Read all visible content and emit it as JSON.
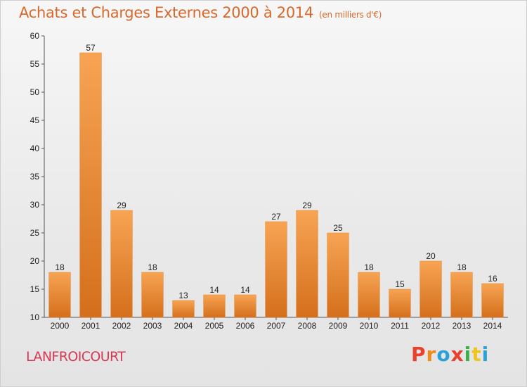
{
  "header": {
    "title": "Achats et Charges Externes 2000 à 2014",
    "unit": "(en milliers d'€)"
  },
  "footer": {
    "commune": "LANFROICOURT",
    "brand": "Proxiti",
    "brand_colors": [
      "#e8412c",
      "#f08a1c",
      "#2aa2d8",
      "#e8412c",
      "#3db04a",
      "#f0c419",
      "#2aa2d8"
    ]
  },
  "chart_data": {
    "type": "bar",
    "categories": [
      "2000",
      "2001",
      "2002",
      "2003",
      "2004",
      "2005",
      "2006",
      "2007",
      "2008",
      "2009",
      "2010",
      "2011",
      "2012",
      "2013",
      "2014"
    ],
    "values": [
      18,
      57,
      29,
      18,
      13,
      14,
      14,
      27,
      29,
      25,
      18,
      15,
      20,
      18,
      16
    ],
    "ylim": [
      10,
      60
    ],
    "yticks": [
      10,
      15,
      20,
      25,
      30,
      35,
      40,
      45,
      50,
      55,
      60
    ],
    "grid": false,
    "bar_color": "#e8842f",
    "bar_color_light": "#f7a453",
    "bar_color_dark": "#d46f1c"
  }
}
